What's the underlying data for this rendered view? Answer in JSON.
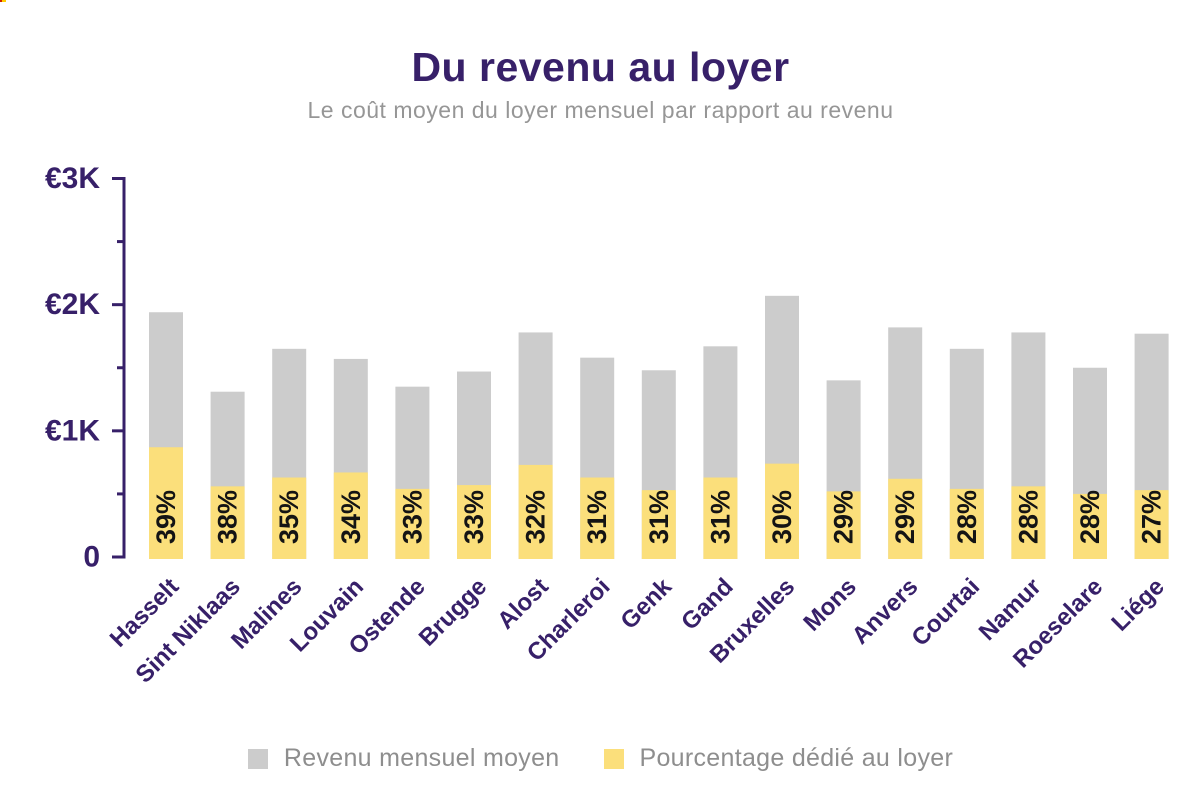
{
  "colors": {
    "purple": "#372069",
    "bar_gray": "#cccccc",
    "bar_yellow": "#fbdf7b",
    "pct_label": "#141414",
    "legend_text": "#8e8e8e",
    "subtitle_text": "#969696"
  },
  "header": {
    "title": "Du revenu au loyer",
    "subtitle": "Le coût moyen du loyer mensuel par rapport au revenu"
  },
  "legend": {
    "items": [
      {
        "label": "Revenu mensuel moyen",
        "color": "#cccccc"
      },
      {
        "label": "Pourcentage dédié au loyer",
        "color": "#fbdf7b"
      }
    ]
  },
  "chart_data": {
    "type": "bar",
    "title": "Du revenu au loyer",
    "subtitle": "Le coût moyen du loyer mensuel par rapport au revenu",
    "categories": [
      "Hasselt",
      "Sint Niklaas",
      "Malines",
      "Louvain",
      "Ostende",
      "Brugge",
      "Alost",
      "Charleroi",
      "Genk",
      "Gand",
      "Bruxelles",
      "Mons",
      "Anvers",
      "Courtai",
      "Namur",
      "Roeselare",
      "Liége"
    ],
    "series": [
      {
        "name": "Revenu mensuel moyen",
        "color": "#cccccc",
        "values": [
          1940,
          1310,
          1650,
          1570,
          1350,
          1470,
          1780,
          1580,
          1480,
          1670,
          2070,
          1400,
          1820,
          1650,
          1780,
          1500,
          1770
        ]
      },
      {
        "name": "Pourcentage dédié au loyer",
        "color": "#fbdf7b",
        "values": [
          870,
          560,
          630,
          670,
          540,
          570,
          730,
          630,
          530,
          630,
          740,
          520,
          620,
          540,
          560,
          500,
          530
        ]
      }
    ],
    "bar_labels": [
      "39%",
      "38%",
      "35%",
      "34%",
      "33%",
      "33%",
      "32%",
      "31%",
      "31%",
      "31%",
      "30%",
      "29%",
      "29%",
      "28%",
      "28%",
      "28%",
      "27%"
    ],
    "percentages": [
      39,
      38,
      35,
      34,
      33,
      33,
      32,
      31,
      31,
      31,
      30,
      29,
      29,
      28,
      28,
      28,
      27
    ],
    "ylabel": "€",
    "ylim": [
      0,
      3000
    ],
    "grid": false,
    "legend_position": "bottom",
    "y_axis": {
      "major_ticks": [
        0,
        1000,
        2000,
        3000
      ],
      "tick_labels": [
        "0",
        "€1K",
        "€2K",
        "€3K"
      ],
      "minor_ticks": [
        500,
        1500,
        2500
      ]
    }
  }
}
